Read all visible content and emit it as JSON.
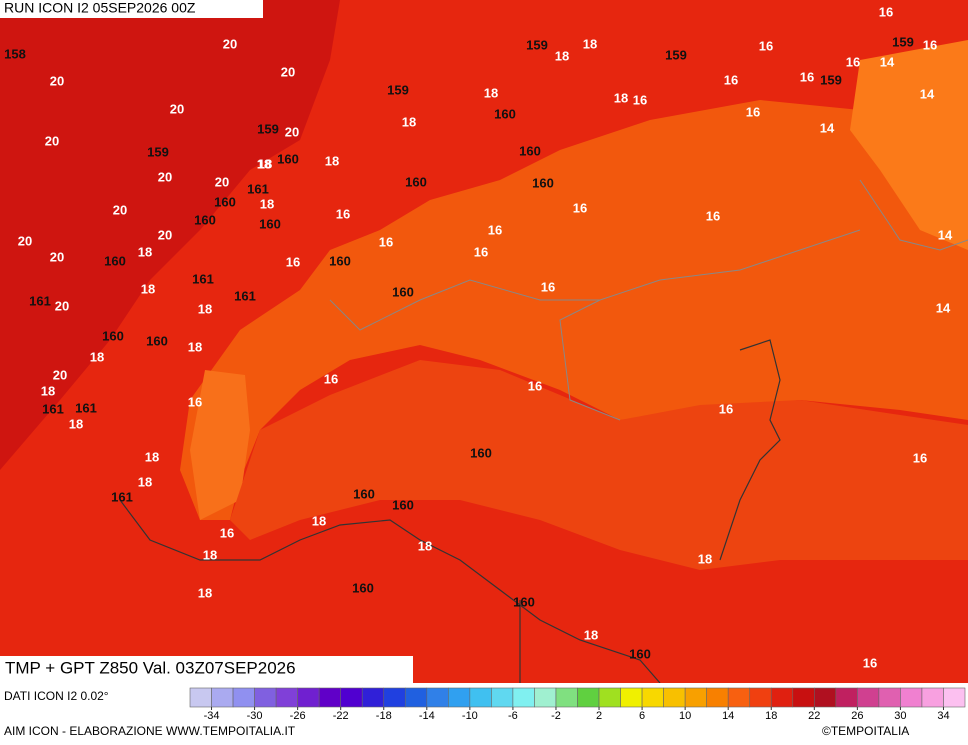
{
  "header": {
    "run": "RUN ICON I2 05SEP2026 00Z"
  },
  "map": {
    "title": "TMP + GPT Z850 Val. 03Z07SEP2026",
    "temperature_labels": [
      20,
      20,
      20,
      20,
      20,
      20,
      20,
      18,
      18,
      20,
      18,
      20,
      20,
      20,
      18,
      20,
      16,
      18,
      20,
      18,
      18,
      18,
      20,
      18,
      16,
      18,
      18,
      18,
      16,
      18,
      18,
      18,
      18,
      18,
      18,
      16,
      16,
      16,
      16,
      16,
      14,
      16,
      16,
      16,
      16,
      16,
      16,
      16,
      18,
      18,
      18,
      18,
      18,
      18,
      16,
      16,
      16,
      16,
      16,
      16,
      14,
      16,
      16,
      14,
      14,
      14
    ],
    "geopotential_labels": [
      158,
      159,
      159,
      160,
      161,
      160,
      160,
      160,
      160,
      160,
      161,
      160,
      160,
      161,
      161,
      161,
      161,
      161,
      160,
      160,
      160,
      160,
      160,
      160,
      160,
      160,
      160,
      160,
      159,
      159,
      160,
      159,
      159,
      159
    ]
  },
  "colorbar": {
    "range": [
      -36,
      36
    ],
    "ticks": [
      -34,
      -30,
      -26,
      -22,
      -18,
      -14,
      -10,
      -6,
      -2,
      2,
      6,
      10,
      14,
      18,
      22,
      26,
      30,
      34
    ],
    "colors": [
      "#c8c8f0",
      "#aaaaf0",
      "#9090f0",
      "#8060e0",
      "#8040d8",
      "#7020d0",
      "#6000c8",
      "#5000d0",
      "#3020d8",
      "#2040e0",
      "#2060e0",
      "#3080e8",
      "#30a0f0",
      "#40c0f0",
      "#60d8f0",
      "#80f0f0",
      "#a0f0d0",
      "#80e080",
      "#60d040",
      "#a0e020",
      "#f0f000",
      "#f8d800",
      "#f8c000",
      "#f8a000",
      "#f88000",
      "#f86010",
      "#f04010",
      "#e02010",
      "#c81010",
      "#b01020",
      "#c02060",
      "#d04090",
      "#e060b0",
      "#f080d0",
      "#f8a0e0",
      "#fcc0f0"
    ]
  },
  "footer": {
    "data_source": "DATI ICON I2 0.02°",
    "credit": "AIM ICON - ELABORAZIONE WWW.TEMPOITALIA.IT",
    "copyright": "©TEMPOITALIA"
  }
}
